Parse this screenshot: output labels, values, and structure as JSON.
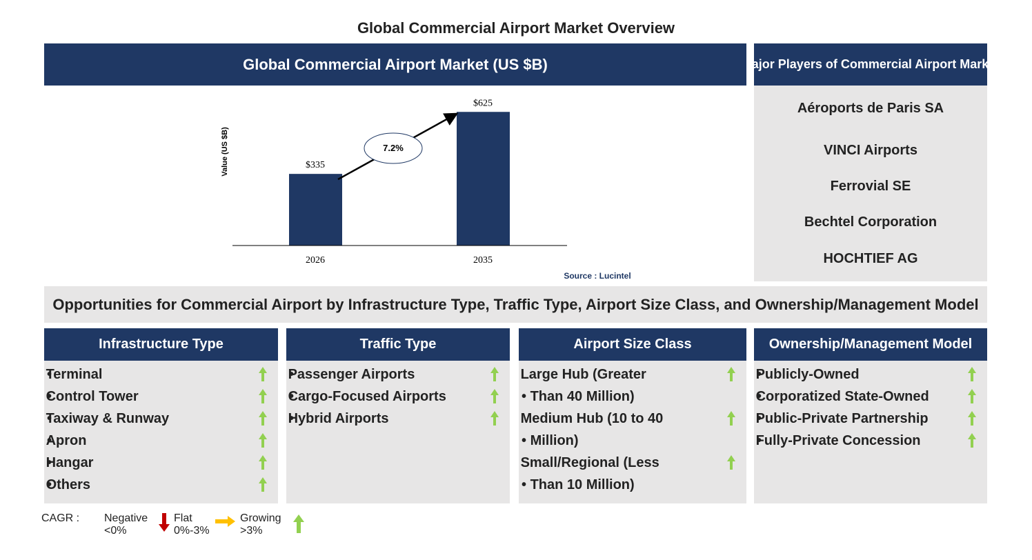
{
  "title": "Global Commercial Airport Market Overview",
  "chart_data": {
    "type": "bar",
    "title": "Global Commercial Airport Market (US $B)",
    "y_label": "Value (US $B)",
    "categories": [
      "2026",
      "2035"
    ],
    "values": [
      335,
      625
    ],
    "value_labels": [
      "$335",
      "$625"
    ],
    "color": "#1f3864",
    "ylim": [
      0,
      700
    ],
    "annotation": "7.2%",
    "source": "Source : Lucintel"
  },
  "players": {
    "title": "Major Players of Commercial Airport Market",
    "items": [
      "Aéroports de Paris SA",
      "VINCI Airports",
      "Ferrovial SE",
      "Bechtel Corporation",
      "HOCHTIEF AG"
    ]
  },
  "opportunities": {
    "title": "Opportunities for Commercial Airport by Infrastructure Type, Traffic Type, Airport Size Class, and Ownership/Management Model",
    "columns": [
      {
        "title": "Infrastructure Type",
        "items": [
          "Terminal",
          "Control Tower",
          "Taxiway & Runway",
          "Apron",
          "Hangar",
          "Others"
        ]
      },
      {
        "title": "Traffic Type",
        "items": [
          "Passenger Airports",
          "Cargo-Focused Airports",
          "Hybrid Airports"
        ]
      },
      {
        "title": "Airport Size Class",
        "items": [
          "Large Hub (Greater Than 40 Million)",
          "Medium Hub (10 to 40 Million)",
          "Small/Regional (Less Than 10 Million)"
        ]
      },
      {
        "title": "Ownership/Management Model",
        "items": [
          "Publicly-Owned",
          "Corporatized State-Owned",
          "Public-Private Partnership",
          "Fully-Private Concession"
        ]
      }
    ]
  },
  "legend": {
    "label": "CAGR :",
    "negative": "Negative <0%",
    "flat": "Flat 0%-3%",
    "growing": "Growing >3%"
  }
}
